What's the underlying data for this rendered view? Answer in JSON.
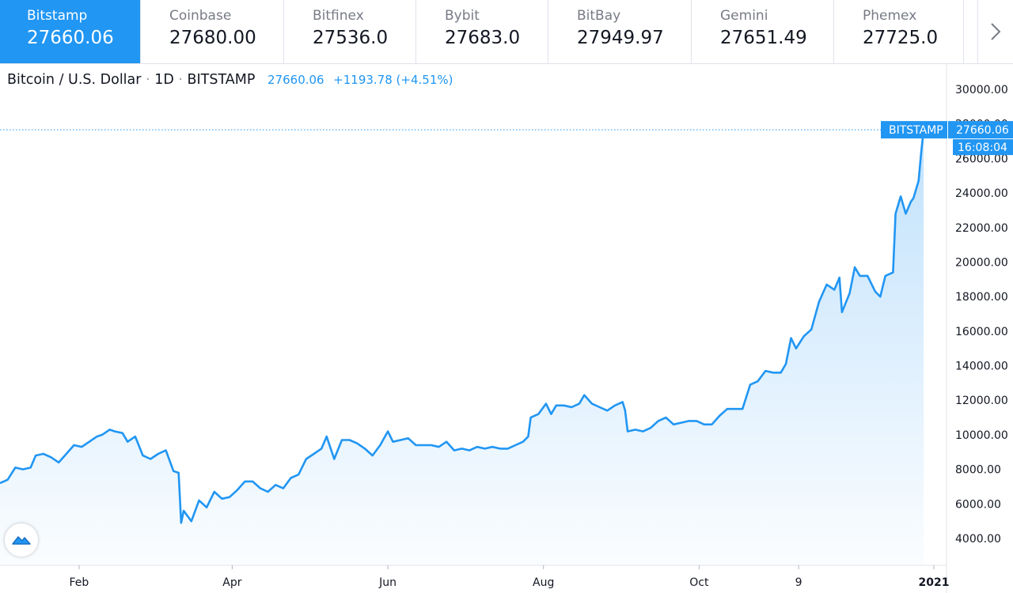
{
  "tickers": [
    {
      "name": "Bitstamp",
      "price": "27660.06"
    },
    {
      "name": "Coinbase",
      "price": "27680.00"
    },
    {
      "name": "Bitfinex",
      "price": "27536.0"
    },
    {
      "name": "Bybit",
      "price": "27683.0"
    },
    {
      "name": "BitBay",
      "price": "27949.97"
    },
    {
      "name": "Gemini",
      "price": "27651.49"
    },
    {
      "name": "Phemex",
      "price": "27725.0"
    }
  ],
  "icons": {
    "next": "chevron-right-icon",
    "logo": "tradingview-logo-icon"
  },
  "colors": {
    "accent": "#2196f3",
    "line": "#2196f3",
    "text": "#131722",
    "muted": "#787b86"
  },
  "header": {
    "symbol": "Bitcoin / U.S. Dollar",
    "interval": "1D",
    "exchange": "BITSTAMP",
    "last": "27660.06",
    "change": "+1193.78 (+4.51%)"
  },
  "price_tag": {
    "label": "BITSTAMP",
    "value": "27660.06",
    "time": "16:08:04"
  },
  "chart_data": {
    "type": "area",
    "ylim": [
      3000,
      31000
    ],
    "y_ticks": [
      4000,
      6000,
      8000,
      10000,
      12000,
      14000,
      16000,
      18000,
      20000,
      22000,
      24000,
      26000,
      28000,
      30000
    ],
    "x_tick_labels": [
      {
        "label": "Feb",
        "x": "2020-02-01"
      },
      {
        "label": "Apr",
        "x": "2020-04-01"
      },
      {
        "label": "Jun",
        "x": "2020-06-01"
      },
      {
        "label": "Aug",
        "x": "2020-08-01"
      },
      {
        "label": "Oct",
        "x": "2020-10-01"
      },
      {
        "label": "9",
        "x": "2020-11-09"
      },
      {
        "label": "2021",
        "x": "2021-01-01"
      }
    ],
    "x_range": [
      "2020-01-01",
      "2021-01-03"
    ],
    "grid": false,
    "series": [
      {
        "values": [
          [
            "2020-01-01",
            7200
          ],
          [
            "2020-01-04",
            7400
          ],
          [
            "2020-01-07",
            8100
          ],
          [
            "2020-01-10",
            8000
          ],
          [
            "2020-01-13",
            8100
          ],
          [
            "2020-01-15",
            8800
          ],
          [
            "2020-01-18",
            8900
          ],
          [
            "2020-01-21",
            8700
          ],
          [
            "2020-01-24",
            8400
          ],
          [
            "2020-01-27",
            8900
          ],
          [
            "2020-01-30",
            9400
          ],
          [
            "2020-02-02",
            9300
          ],
          [
            "2020-02-05",
            9600
          ],
          [
            "2020-02-08",
            9900
          ],
          [
            "2020-02-10",
            10000
          ],
          [
            "2020-02-13",
            10300
          ],
          [
            "2020-02-15",
            10200
          ],
          [
            "2020-02-18",
            10100
          ],
          [
            "2020-02-20",
            9600
          ],
          [
            "2020-02-23",
            9900
          ],
          [
            "2020-02-26",
            8800
          ],
          [
            "2020-02-29",
            8600
          ],
          [
            "2020-03-03",
            8900
          ],
          [
            "2020-03-06",
            9100
          ],
          [
            "2020-03-09",
            7900
          ],
          [
            "2020-03-11",
            7800
          ],
          [
            "2020-03-12",
            4900
          ],
          [
            "2020-03-13",
            5600
          ],
          [
            "2020-03-16",
            5000
          ],
          [
            "2020-03-19",
            6200
          ],
          [
            "2020-03-22",
            5800
          ],
          [
            "2020-03-25",
            6700
          ],
          [
            "2020-03-28",
            6300
          ],
          [
            "2020-03-31",
            6400
          ],
          [
            "2020-04-03",
            6800
          ],
          [
            "2020-04-06",
            7300
          ],
          [
            "2020-04-09",
            7300
          ],
          [
            "2020-04-12",
            6900
          ],
          [
            "2020-04-15",
            6700
          ],
          [
            "2020-04-18",
            7100
          ],
          [
            "2020-04-21",
            6900
          ],
          [
            "2020-04-24",
            7500
          ],
          [
            "2020-04-27",
            7700
          ],
          [
            "2020-04-30",
            8600
          ],
          [
            "2020-05-03",
            8900
          ],
          [
            "2020-05-06",
            9200
          ],
          [
            "2020-05-08",
            9900
          ],
          [
            "2020-05-11",
            8600
          ],
          [
            "2020-05-14",
            9700
          ],
          [
            "2020-05-17",
            9700
          ],
          [
            "2020-05-20",
            9500
          ],
          [
            "2020-05-23",
            9200
          ],
          [
            "2020-05-26",
            8800
          ],
          [
            "2020-05-29",
            9400
          ],
          [
            "2020-06-01",
            10200
          ],
          [
            "2020-06-03",
            9600
          ],
          [
            "2020-06-06",
            9700
          ],
          [
            "2020-06-09",
            9800
          ],
          [
            "2020-06-12",
            9400
          ],
          [
            "2020-06-15",
            9400
          ],
          [
            "2020-06-18",
            9400
          ],
          [
            "2020-06-21",
            9300
          ],
          [
            "2020-06-24",
            9600
          ],
          [
            "2020-06-27",
            9100
          ],
          [
            "2020-06-30",
            9200
          ],
          [
            "2020-07-03",
            9100
          ],
          [
            "2020-07-06",
            9300
          ],
          [
            "2020-07-09",
            9200
          ],
          [
            "2020-07-12",
            9300
          ],
          [
            "2020-07-15",
            9200
          ],
          [
            "2020-07-18",
            9200
          ],
          [
            "2020-07-21",
            9400
          ],
          [
            "2020-07-24",
            9600
          ],
          [
            "2020-07-26",
            9900
          ],
          [
            "2020-07-27",
            11000
          ],
          [
            "2020-07-30",
            11200
          ],
          [
            "2020-08-02",
            11800
          ],
          [
            "2020-08-04",
            11200
          ],
          [
            "2020-08-06",
            11700
          ],
          [
            "2020-08-09",
            11700
          ],
          [
            "2020-08-12",
            11600
          ],
          [
            "2020-08-15",
            11800
          ],
          [
            "2020-08-17",
            12300
          ],
          [
            "2020-08-20",
            11800
          ],
          [
            "2020-08-23",
            11600
          ],
          [
            "2020-08-26",
            11400
          ],
          [
            "2020-08-29",
            11700
          ],
          [
            "2020-09-01",
            11900
          ],
          [
            "2020-09-02",
            11400
          ],
          [
            "2020-09-03",
            10200
          ],
          [
            "2020-09-06",
            10300
          ],
          [
            "2020-09-09",
            10200
          ],
          [
            "2020-09-12",
            10400
          ],
          [
            "2020-09-15",
            10800
          ],
          [
            "2020-09-18",
            11000
          ],
          [
            "2020-09-21",
            10600
          ],
          [
            "2020-09-24",
            10700
          ],
          [
            "2020-09-27",
            10800
          ],
          [
            "2020-09-30",
            10800
          ],
          [
            "2020-10-03",
            10600
          ],
          [
            "2020-10-06",
            10600
          ],
          [
            "2020-10-09",
            11100
          ],
          [
            "2020-10-12",
            11500
          ],
          [
            "2020-10-15",
            11500
          ],
          [
            "2020-10-18",
            11500
          ],
          [
            "2020-10-21",
            12900
          ],
          [
            "2020-10-24",
            13100
          ],
          [
            "2020-10-27",
            13700
          ],
          [
            "2020-10-30",
            13600
          ],
          [
            "2020-11-02",
            13600
          ],
          [
            "2020-11-04",
            14100
          ],
          [
            "2020-11-06",
            15600
          ],
          [
            "2020-11-08",
            15000
          ],
          [
            "2020-11-11",
            15700
          ],
          [
            "2020-11-14",
            16100
          ],
          [
            "2020-11-17",
            17700
          ],
          [
            "2020-11-20",
            18700
          ],
          [
            "2020-11-23",
            18400
          ],
          [
            "2020-11-25",
            19100
          ],
          [
            "2020-11-26",
            17100
          ],
          [
            "2020-11-29",
            18200
          ],
          [
            "2020-12-01",
            19700
          ],
          [
            "2020-12-03",
            19200
          ],
          [
            "2020-12-06",
            19200
          ],
          [
            "2020-12-09",
            18300
          ],
          [
            "2020-12-11",
            18000
          ],
          [
            "2020-12-13",
            19200
          ],
          [
            "2020-12-16",
            19400
          ],
          [
            "2020-12-17",
            22800
          ],
          [
            "2020-12-19",
            23800
          ],
          [
            "2020-12-21",
            22800
          ],
          [
            "2020-12-23",
            23500
          ],
          [
            "2020-12-24",
            23700
          ],
          [
            "2020-12-26",
            24700
          ],
          [
            "2020-12-27",
            26300
          ],
          [
            "2020-12-28",
            27660
          ]
        ]
      }
    ]
  }
}
